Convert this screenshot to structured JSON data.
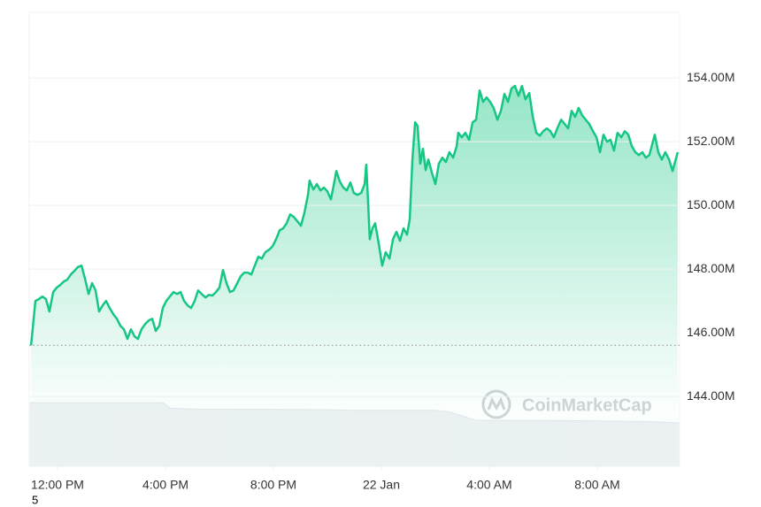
{
  "chart_data": {
    "type": "line",
    "x": [
      -0.98,
      -0.82,
      -0.69,
      -0.56,
      -0.43,
      -0.3,
      -0.16,
      -0.03,
      0.1,
      0.23,
      0.36,
      0.49,
      0.62,
      0.75,
      0.89,
      1.02,
      1.15,
      1.28,
      1.41,
      1.54,
      1.67,
      1.8,
      1.93,
      2.07,
      2.2,
      2.33,
      2.46,
      2.59,
      2.72,
      2.85,
      2.98,
      3.11,
      3.25,
      3.38,
      3.51,
      3.64,
      3.77,
      3.9,
      4.03,
      4.16,
      4.3,
      4.43,
      4.56,
      4.69,
      4.82,
      4.95,
      5.08,
      5.21,
      5.34,
      5.48,
      5.61,
      5.74,
      5.87,
      6.0,
      6.13,
      6.26,
      6.39,
      6.52,
      6.66,
      6.79,
      6.92,
      7.05,
      7.18,
      7.31,
      7.44,
      7.57,
      7.7,
      7.84,
      7.97,
      8.1,
      8.23,
      8.36,
      8.49,
      8.62,
      8.75,
      8.89,
      9.02,
      9.15,
      9.28,
      9.34,
      9.48,
      9.61,
      9.74,
      9.87,
      10.0,
      10.13,
      10.26,
      10.33,
      10.46,
      10.59,
      10.72,
      10.85,
      10.98,
      11.11,
      11.25,
      11.38,
      11.44,
      11.51,
      11.57,
      11.67,
      11.77,
      11.9,
      12.03,
      12.16,
      12.3,
      12.43,
      12.56,
      12.69,
      12.82,
      12.95,
      13.05,
      13.15,
      13.25,
      13.34,
      13.44,
      13.54,
      13.64,
      13.74,
      13.87,
      14.0,
      14.13,
      14.26,
      14.39,
      14.52,
      14.66,
      14.79,
      14.85,
      14.98,
      15.11,
      15.25,
      15.38,
      15.51,
      15.64,
      15.77,
      15.9,
      16.03,
      16.16,
      16.3,
      16.43,
      16.56,
      16.69,
      16.82,
      16.95,
      17.08,
      17.21,
      17.34,
      17.48,
      17.61,
      17.74,
      17.87,
      18.0,
      18.13,
      18.26,
      18.39,
      18.52,
      18.66,
      18.79,
      18.92,
      19.05,
      19.18,
      19.31,
      19.44,
      19.57,
      19.7,
      19.84,
      19.97,
      20.1,
      20.23,
      20.36,
      20.49,
      20.62,
      20.75,
      20.89,
      21.02,
      21.15,
      21.28,
      21.41,
      21.54,
      21.67,
      21.8,
      21.93,
      22.13,
      22.26,
      22.39,
      22.52,
      22.66,
      22.79,
      22.98
    ],
    "series": [
      {
        "color": "#16c784",
        "values": [
          145.61,
          147.0,
          147.06,
          147.14,
          147.06,
          146.67,
          147.28,
          147.42,
          147.5,
          147.61,
          147.67,
          147.83,
          147.94,
          148.06,
          148.11,
          147.69,
          147.22,
          147.56,
          147.33,
          146.67,
          146.86,
          147.0,
          146.78,
          146.58,
          146.44,
          146.22,
          146.11,
          145.81,
          146.11,
          145.89,
          145.81,
          146.11,
          146.28,
          146.39,
          146.44,
          146.06,
          146.22,
          146.78,
          147.0,
          147.14,
          147.28,
          147.22,
          147.28,
          147.0,
          146.86,
          146.78,
          147.0,
          147.33,
          147.22,
          147.11,
          147.19,
          147.17,
          147.28,
          147.42,
          147.97,
          147.56,
          147.28,
          147.33,
          147.56,
          147.78,
          147.89,
          147.89,
          147.83,
          148.11,
          148.39,
          148.33,
          148.53,
          148.61,
          148.72,
          148.94,
          149.22,
          149.28,
          149.44,
          149.72,
          149.64,
          149.5,
          149.36,
          149.78,
          150.33,
          150.78,
          150.5,
          150.67,
          150.47,
          150.56,
          150.44,
          150.19,
          150.75,
          151.08,
          150.75,
          150.56,
          150.47,
          150.72,
          150.39,
          150.33,
          150.39,
          150.67,
          151.28,
          150.06,
          148.94,
          149.28,
          149.44,
          148.81,
          148.11,
          148.53,
          148.33,
          148.94,
          149.17,
          148.89,
          149.28,
          149.08,
          149.56,
          151.44,
          152.61,
          152.5,
          151.31,
          151.78,
          151.11,
          151.44,
          151.03,
          150.67,
          151.31,
          151.5,
          151.36,
          151.67,
          151.5,
          151.86,
          152.28,
          152.14,
          152.28,
          152.06,
          152.61,
          152.69,
          153.61,
          153.25,
          153.39,
          153.25,
          153.06,
          152.69,
          152.97,
          153.5,
          153.25,
          153.67,
          153.75,
          153.44,
          153.75,
          153.33,
          153.53,
          152.78,
          152.28,
          152.19,
          152.33,
          152.42,
          152.33,
          152.14,
          152.42,
          152.69,
          152.56,
          152.42,
          152.97,
          152.78,
          153.06,
          152.83,
          152.69,
          152.56,
          152.33,
          152.14,
          151.67,
          152.22,
          152.0,
          152.06,
          151.72,
          152.28,
          152.14,
          152.33,
          152.22,
          151.86,
          151.67,
          151.58,
          151.67,
          151.5,
          151.58,
          152.22,
          151.67,
          151.44,
          151.67,
          151.44,
          151.08,
          151.67
        ]
      }
    ],
    "reference_line": 145.61,
    "volume": {
      "color": "#eff2f5",
      "x": [
        -1.05,
        3.9,
        4.2,
        5.0,
        10.0,
        11.0,
        12.0,
        14.0,
        14.5,
        15.5,
        20.0,
        22.0,
        23.05
      ],
      "values": [
        91,
        91,
        83,
        82,
        81,
        80,
        80,
        80,
        78,
        66,
        65,
        64,
        62
      ]
    },
    "xlim": [
      -1.05,
      23.05
    ],
    "ylim": [
      141.81,
      156.06
    ],
    "y2lim": [
      0,
      100
    ],
    "xticks": [
      {
        "value": 0,
        "label": "12:00 PM"
      },
      {
        "value": 4,
        "label": "4:00 PM"
      },
      {
        "value": 8,
        "label": "8:00 PM"
      },
      {
        "value": 12,
        "label": "22 Jan"
      },
      {
        "value": 16,
        "label": "4:00 AM"
      },
      {
        "value": 20,
        "label": "8:00 AM"
      }
    ],
    "yticks": [
      {
        "value": 144,
        "label": "144.00M"
      },
      {
        "value": 146,
        "label": "146.00M"
      },
      {
        "value": 148,
        "label": "148.00M"
      },
      {
        "value": 150,
        "label": "150.00M"
      },
      {
        "value": 152,
        "label": "152.00M"
      },
      {
        "value": 154,
        "label": "154.00M"
      }
    ],
    "grid": true,
    "watermark": "CoinMarketCap",
    "stray_label": "5"
  }
}
